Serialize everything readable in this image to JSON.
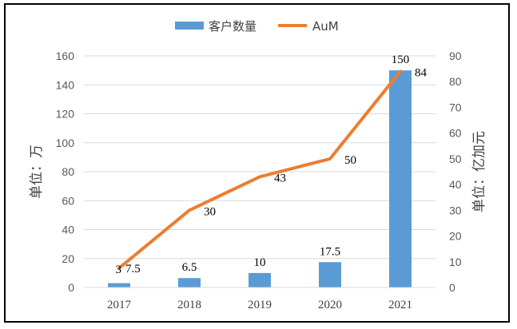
{
  "chart_data": {
    "type": "bar+line",
    "categories": [
      "2017",
      "2018",
      "2019",
      "2020",
      "2021"
    ],
    "series": [
      {
        "name": "客户数量",
        "type": "bar",
        "axis": "left",
        "values": [
          3,
          6.5,
          10,
          17.5,
          150
        ],
        "color": "#5B9BD5"
      },
      {
        "name": "AuM",
        "type": "line",
        "axis": "right",
        "values": [
          7.5,
          30,
          43,
          50,
          84
        ],
        "color": "#ED7D31"
      }
    ],
    "ylabel_left": "单位：万",
    "ylabel_right": "单位：亿加元",
    "ylim_left": [
      0,
      160
    ],
    "yticks_left": [
      0,
      20,
      40,
      60,
      80,
      100,
      120,
      140,
      160
    ],
    "ylim_right": [
      0,
      90
    ],
    "yticks_right": [
      0,
      10,
      20,
      30,
      40,
      50,
      60,
      70,
      80,
      90
    ],
    "grid": true,
    "legend_position": "top-center"
  }
}
